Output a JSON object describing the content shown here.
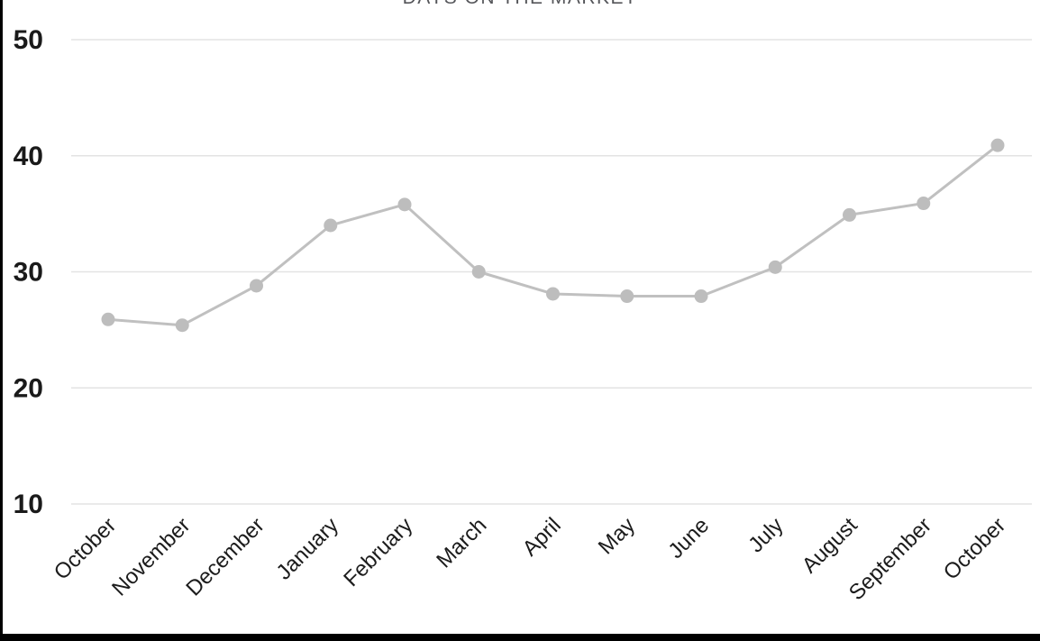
{
  "title": "DAYS ON THE MARKET",
  "colors": {
    "background": "#ffffff",
    "line": "#c0c0c0",
    "marker": "#bdbdbd",
    "gridline": "#e3e3e3",
    "y_label": "#1a1a1a",
    "x_label": "#1c1c1c",
    "title_text": "#55565a",
    "border": "#000000"
  },
  "y_axis": {
    "ticks": [
      "50",
      "40",
      "30",
      "20",
      "10"
    ]
  },
  "chart_data": {
    "type": "line",
    "title": "DAYS ON THE MARKET",
    "xlabel": "",
    "ylabel": "",
    "categories": [
      "October",
      "November",
      "December",
      "January",
      "February",
      "March",
      "April",
      "May",
      "June",
      "July",
      "August",
      "September",
      "October"
    ],
    "values": [
      25.9,
      25.4,
      28.8,
      34.0,
      35.8,
      30.0,
      28.1,
      27.9,
      27.9,
      30.4,
      34.9,
      35.9,
      40.9
    ],
    "ylim": [
      10,
      50
    ],
    "yticks": [
      10,
      20,
      30,
      40,
      50
    ],
    "grid": true,
    "legend": false,
    "marker": "circle",
    "x_label_rotation_deg": -45
  }
}
